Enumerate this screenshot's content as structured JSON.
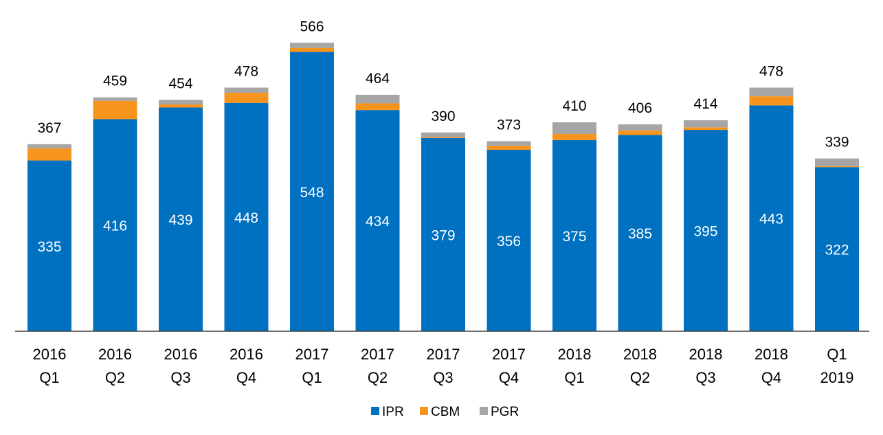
{
  "chart_data": {
    "type": "bar",
    "stacked": true,
    "categories": [
      [
        "2016",
        "Q1"
      ],
      [
        "2016",
        "Q2"
      ],
      [
        "2016",
        "Q3"
      ],
      [
        "2016",
        "Q4"
      ],
      [
        "2017",
        "Q1"
      ],
      [
        "2017",
        "Q2"
      ],
      [
        "2017",
        "Q3"
      ],
      [
        "2017",
        "Q4"
      ],
      [
        "2018",
        "Q1"
      ],
      [
        "2018",
        "Q2"
      ],
      [
        "2018",
        "Q3"
      ],
      [
        "2018",
        "Q4"
      ],
      [
        "Q1",
        "2019"
      ]
    ],
    "series": [
      {
        "name": "IPR",
        "color": "#0070c0",
        "values": [
          335,
          416,
          439,
          448,
          548,
          434,
          379,
          356,
          375,
          385,
          395,
          443,
          322
        ]
      },
      {
        "name": "CBM",
        "color": "#f7941d",
        "values": [
          24,
          36,
          6,
          20,
          8,
          13,
          2,
          8,
          12,
          9,
          5,
          18,
          2
        ]
      },
      {
        "name": "PGR",
        "color": "#a6a6a6",
        "values": [
          8,
          7,
          9,
          10,
          10,
          17,
          9,
          9,
          23,
          12,
          14,
          17,
          15
        ]
      }
    ],
    "totals": [
      367,
      459,
      454,
      478,
      566,
      464,
      390,
      373,
      410,
      406,
      414,
      478,
      339
    ],
    "title": "",
    "xlabel": "",
    "ylabel": "",
    "ylim": [
      0,
      570
    ],
    "grid": false,
    "legend": "bottom-center",
    "value_labels": true
  }
}
